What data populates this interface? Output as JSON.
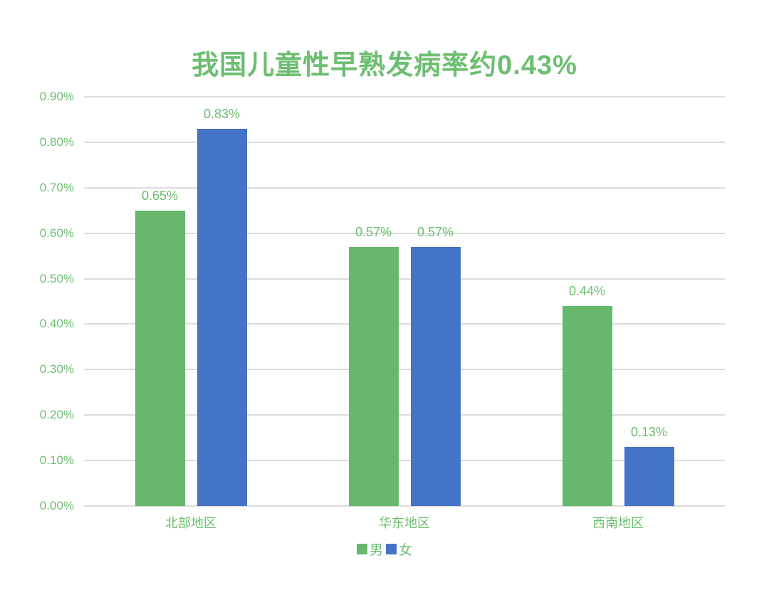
{
  "chart_data": {
    "type": "bar",
    "title": "我国儿童性早熟发病率约0.43%",
    "categories": [
      "北部地区",
      "华东地区",
      "西南地区"
    ],
    "series": [
      {
        "name": "男",
        "color": "#67b76c",
        "values": [
          0.65,
          0.57,
          0.44
        ],
        "labels": [
          "0.65%",
          "0.57%",
          "0.44%"
        ]
      },
      {
        "name": "女",
        "color": "#4473c7",
        "values": [
          0.83,
          0.57,
          0.13
        ],
        "labels": [
          "0.83%",
          "0.57%",
          "0.13%"
        ]
      }
    ],
    "y_axis": {
      "min": 0,
      "max": 0.9,
      "tick_step": 0.1,
      "unit": "%",
      "tick_labels": [
        "0.00%",
        "0.10%",
        "0.20%",
        "0.30%",
        "0.40%",
        "0.50%",
        "0.60%",
        "0.70%",
        "0.80%",
        "0.90%"
      ]
    },
    "xlabel": "",
    "ylabel": "",
    "grid": true,
    "legend": {
      "position": "bottom",
      "entries": [
        "男",
        "女"
      ]
    },
    "colors": {
      "title": "#6dbe71",
      "axis_text": "#6abe6e",
      "data_label": "#6abe6e",
      "legend_text": "#6abe6e",
      "gridline": "#dcdcdc"
    }
  }
}
